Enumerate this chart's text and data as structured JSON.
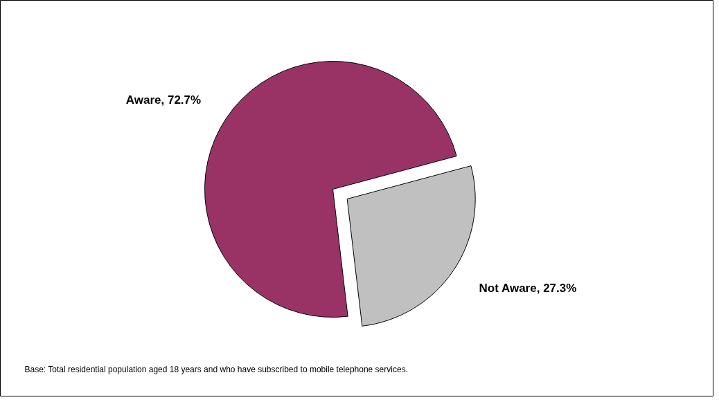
{
  "chart_data": {
    "type": "pie",
    "categories": [
      "Aware",
      "Not Aware"
    ],
    "values": [
      72.7,
      27.3
    ],
    "colors": [
      "#993366",
      "#c0c0c0"
    ],
    "value_labels": [
      "72.7%",
      "27.3%"
    ],
    "annotations": [
      "Base: Total residential population aged 18 years and who have subscribed to mobile telephone services."
    ]
  }
}
